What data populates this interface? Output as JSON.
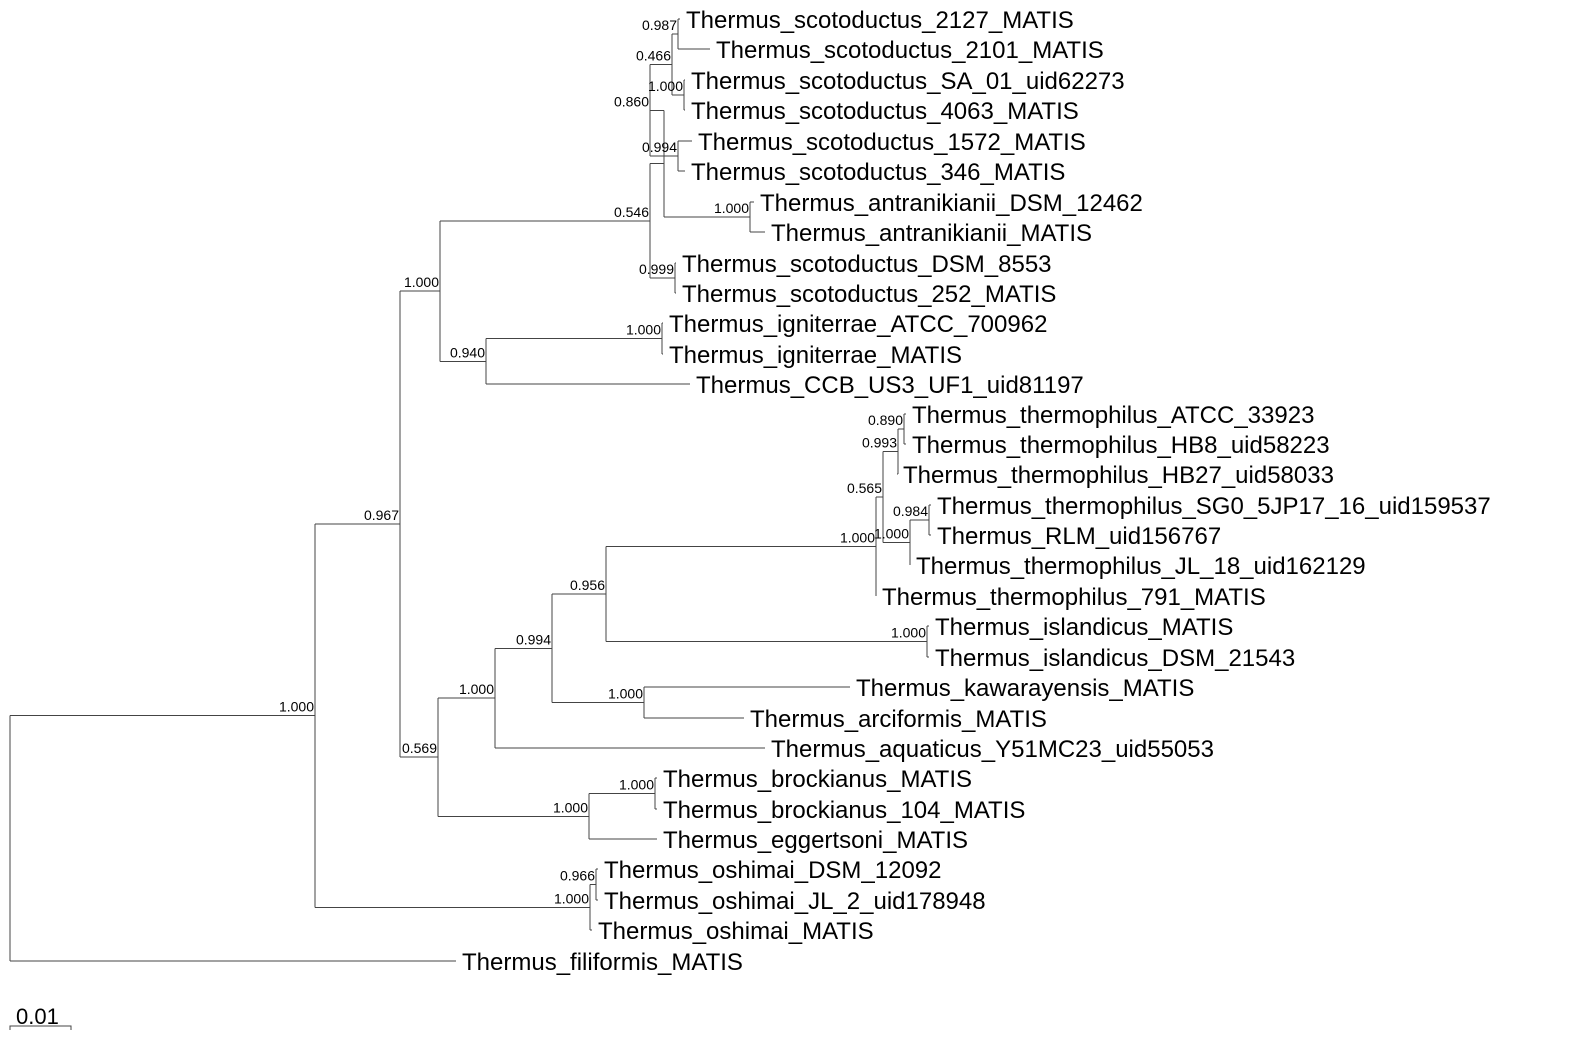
{
  "tree": {
    "leaves": [
      "Thermus_scotoductus_2127_MATIS",
      "Thermus_scotoductus_2101_MATIS",
      "Thermus_scotoductus_SA_01_uid62273",
      "Thermus_scotoductus_4063_MATIS",
      "Thermus_scotoductus_1572_MATIS",
      "Thermus_scotoductus_346_MATIS",
      "Thermus_antranikianii_DSM_12462",
      "Thermus_antranikianii_MATIS",
      "Thermus_scotoductus_DSM_8553",
      "Thermus_scotoductus_252_MATIS",
      "Thermus_igniterrae_ATCC_700962",
      "Thermus_igniterrae_MATIS",
      "Thermus_CCB_US3_UF1_uid81197",
      "Thermus_thermophilus_ATCC_33923",
      "Thermus_thermophilus_HB8_uid58223",
      "Thermus_thermophilus_HB27_uid58033",
      "Thermus_thermophilus_SG0_5JP17_16_uid159537",
      "Thermus_RLM_uid156767",
      "Thermus_thermophilus_JL_18_uid162129",
      "Thermus_thermophilus_791_MATIS",
      "Thermus_islandicus_MATIS",
      "Thermus_islandicus_DSM_21543",
      "Thermus_kawarayensis_MATIS",
      "Thermus_arciformis_MATIS",
      "Thermus_aquaticus_Y51MC23_uid55053",
      "Thermus_brockianus_MATIS",
      "Thermus_brockianus_104_MATIS",
      "Thermus_eggertsoni_MATIS",
      "Thermus_oshimai_DSM_12092",
      "Thermus_oshimai_JL_2_uid178948",
      "Thermus_oshimai_MATIS",
      "Thermus_filiformis_MATIS"
    ],
    "supports": {
      "scot_2127_2101": "0.987",
      "scot_sa01_4063": "1.000",
      "scot_4clade": "0.466",
      "scot_1572_346": "0.994",
      "scot_6clade": "0.860",
      "antranikianii": "1.000",
      "scot_8553_252": "0.999",
      "scot_antr_clade": "0.546",
      "igniterrae": "1.000",
      "igniterrae_ccb": "0.940",
      "scot_ign_clade": "1.000",
      "thermo_atcc_hb8": "0.890",
      "thermo_hb27_clade": "0.993",
      "thermo_sg0_rlm": "0.984",
      "thermo_jl18_clade": "1.000",
      "thermo_inner": "0.565",
      "thermo_clade": "1.000",
      "islandicus": "1.000",
      "thermo_isl_clade": "0.956",
      "kawar_arci": "1.000",
      "thermo_kawar_clade": "0.994",
      "aquaticus_clade": "1.000",
      "brockianus": "1.000",
      "brock_egg": "1.000",
      "therm_brock_clade": "0.569",
      "big_clade": "0.967",
      "oshimai_inner": "0.966",
      "oshimai": "1.000",
      "ingroup": "1.000"
    },
    "scale_bar_label": "0.01"
  }
}
